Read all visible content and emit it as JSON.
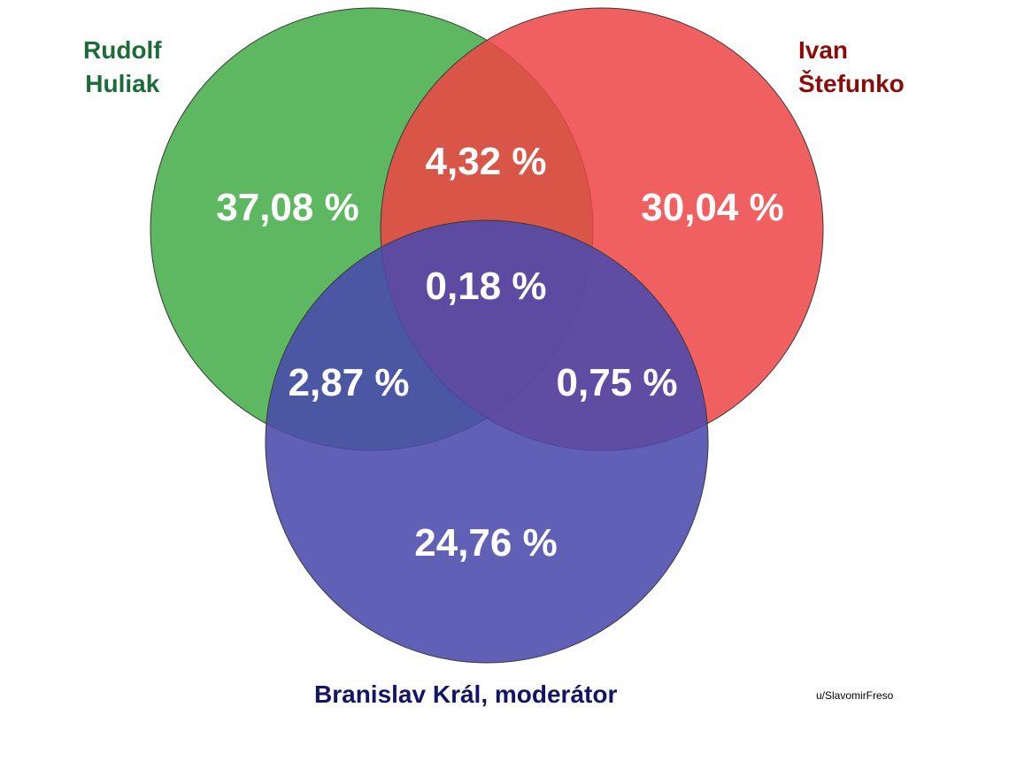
{
  "sets": [
    {
      "name_lines": [
        "Rudolf",
        "Huliak"
      ],
      "color": "#4caf50",
      "label_color": "#1e6b3a"
    },
    {
      "name_lines": [
        "Ivan",
        "Štefunko"
      ],
      "color": "#ee4444",
      "label_color": "#8b0a0a"
    },
    {
      "name_lines": [
        "Branislav Král, moderátor"
      ],
      "color": "#4a4aad",
      "label_color": "#141466"
    }
  ],
  "regions": {
    "only_rudolf": "37,08 %",
    "only_ivan": "30,04 %",
    "only_branislav": "24,76 %",
    "rudolf_ivan": "4,32 %",
    "rudolf_branislav": "2,87 %",
    "ivan_branislav": "0,75 %",
    "all_three": "0,18 %"
  },
  "credit": "u/SlavomirFreso"
}
